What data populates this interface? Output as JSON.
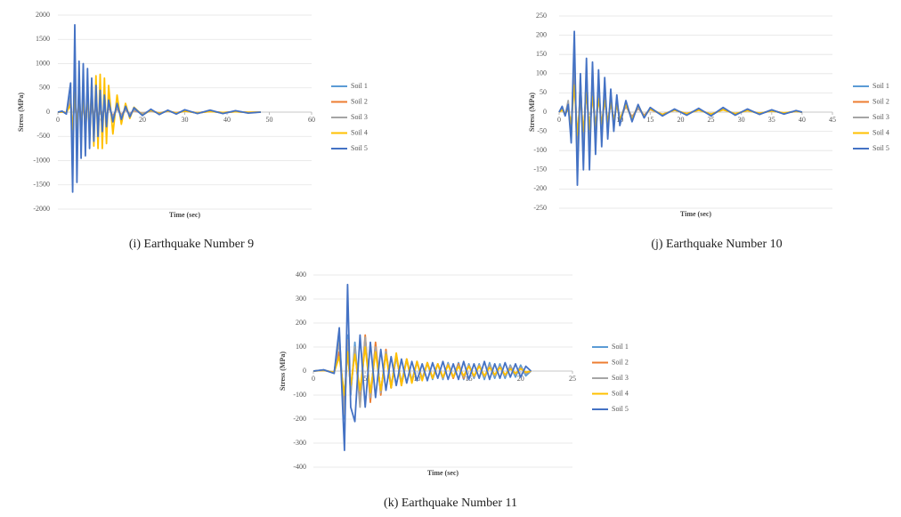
{
  "chart_data": [
    {
      "type": "line",
      "caption": "(i) Earthquake Number 9",
      "xlabel": "Time (sec)",
      "ylabel": "Stress (MPa)",
      "xlim": [
        0,
        60
      ],
      "xticks": [
        0,
        10,
        20,
        30,
        40,
        50,
        60
      ],
      "ylim": [
        -2000,
        2000
      ],
      "yticks": [
        -2000,
        -1500,
        -1000,
        -500,
        0,
        500,
        1000,
        1500,
        2000
      ],
      "grid": true,
      "legend": "right",
      "x": [
        0,
        1,
        2,
        3,
        3.5,
        4,
        4.5,
        5,
        5.5,
        6,
        6.5,
        7,
        7.5,
        8,
        8.5,
        9,
        9.5,
        10,
        10.5,
        11,
        11.5,
        12,
        13,
        14,
        15,
        16,
        17,
        18,
        20,
        22,
        24,
        26,
        28,
        30,
        33,
        36,
        39,
        42,
        45,
        48
      ],
      "series": [
        {
          "name": "Soil 1",
          "color": "#5b9bd5",
          "values": [
            0,
            10,
            -20,
            350,
            -900,
            1000,
            -800,
            600,
            -550,
            550,
            -500,
            500,
            -420,
            400,
            -350,
            320,
            -280,
            260,
            -230,
            200,
            -170,
            150,
            -120,
            100,
            -90,
            70,
            -60,
            50,
            -40,
            35,
            -30,
            25,
            -25,
            30,
            -20,
            25,
            -20,
            15,
            -10,
            0
          ]
        },
        {
          "name": "Soil 2",
          "color": "#ed7d31",
          "values": [
            0,
            5,
            -10,
            200,
            -500,
            550,
            -450,
            400,
            -380,
            380,
            -350,
            330,
            -300,
            280,
            -250,
            220,
            -200,
            180,
            -160,
            140,
            -120,
            100,
            -80,
            70,
            -60,
            50,
            -40,
            35,
            -30,
            25,
            -20,
            20,
            -15,
            20,
            -15,
            15,
            -10,
            10,
            -5,
            0
          ]
        },
        {
          "name": "Soil 3",
          "color": "#a5a5a5",
          "values": [
            0,
            8,
            -15,
            300,
            -700,
            800,
            -650,
            550,
            -500,
            500,
            -450,
            450,
            -400,
            380,
            -320,
            300,
            -260,
            240,
            -210,
            180,
            -150,
            130,
            -110,
            90,
            -80,
            60,
            -50,
            45,
            -35,
            30,
            -25,
            25,
            -20,
            25,
            -20,
            20,
            -15,
            10,
            -5,
            0
          ]
        },
        {
          "name": "Soil 4",
          "color": "#ffc000",
          "values": [
            0,
            5,
            -10,
            150,
            -350,
            400,
            -350,
            300,
            -300,
            350,
            -400,
            500,
            -550,
            650,
            -700,
            750,
            -750,
            780,
            -750,
            700,
            -650,
            550,
            -450,
            350,
            -250,
            180,
            -130,
            100,
            -60,
            40,
            -30,
            25,
            -20,
            20,
            -15,
            15,
            -10,
            10,
            -5,
            0
          ]
        },
        {
          "name": "Soil 5",
          "color": "#4472c4",
          "values": [
            0,
            20,
            -40,
            600,
            -1650,
            1800,
            -1450,
            1050,
            -950,
            1000,
            -900,
            900,
            -750,
            700,
            -600,
            550,
            -500,
            450,
            -400,
            350,
            -300,
            250,
            -200,
            180,
            -150,
            120,
            -100,
            90,
            -70,
            60,
            -50,
            40,
            -40,
            50,
            -30,
            40,
            -30,
            30,
            -20,
            0
          ]
        }
      ]
    },
    {
      "type": "line",
      "caption": "(j) Earthquake Number 10",
      "xlabel": "Time (sec)",
      "ylabel": "Stress (MPa)",
      "xlim": [
        0,
        45
      ],
      "xticks": [
        0,
        5,
        10,
        15,
        20,
        25,
        30,
        35,
        40,
        45
      ],
      "ylim": [
        -250,
        250
      ],
      "yticks": [
        -250,
        -200,
        -150,
        -100,
        -50,
        0,
        50,
        100,
        150,
        200,
        250
      ],
      "grid": true,
      "legend": "right",
      "x": [
        0,
        0.5,
        1,
        1.5,
        2,
        2.5,
        3,
        3.5,
        4,
        4.5,
        5,
        5.5,
        6,
        6.5,
        7,
        7.5,
        8,
        8.5,
        9,
        9.5,
        10,
        11,
        12,
        13,
        14,
        15,
        17,
        19,
        21,
        23,
        25,
        27,
        29,
        31,
        33,
        35,
        37,
        39,
        40
      ],
      "series": [
        {
          "name": "Soil 1",
          "color": "#5b9bd5",
          "values": [
            0,
            10,
            -8,
            15,
            -60,
            140,
            -130,
            80,
            -100,
            100,
            -100,
            90,
            -80,
            75,
            -60,
            60,
            -45,
            40,
            -35,
            30,
            -25,
            20,
            -18,
            15,
            -12,
            10,
            -8,
            6,
            -6,
            8,
            -8,
            9,
            -6,
            6,
            -5,
            5,
            -4,
            3,
            0
          ]
        },
        {
          "name": "Soil 2",
          "color": "#ed7d31",
          "values": [
            0,
            8,
            -5,
            10,
            -40,
            100,
            -90,
            60,
            -70,
            70,
            -70,
            60,
            -55,
            50,
            -40,
            40,
            -30,
            28,
            -24,
            20,
            -18,
            15,
            -12,
            10,
            -8,
            7,
            -6,
            5,
            -4,
            6,
            -6,
            7,
            -5,
            5,
            -4,
            4,
            -3,
            2,
            0
          ]
        },
        {
          "name": "Soil 3",
          "color": "#a5a5a5",
          "values": [
            0,
            12,
            -8,
            30,
            -70,
            150,
            -140,
            90,
            -110,
            110,
            -100,
            90,
            -80,
            70,
            -55,
            50,
            -40,
            35,
            -30,
            25,
            -22,
            18,
            -15,
            12,
            -10,
            8,
            -7,
            6,
            -5,
            7,
            -7,
            8,
            -5,
            5,
            -4,
            4,
            -3,
            2,
            0
          ]
        },
        {
          "name": "Soil 4",
          "color": "#ffc000",
          "values": [
            0,
            5,
            -4,
            8,
            -30,
            70,
            -60,
            40,
            -50,
            50,
            -45,
            40,
            -35,
            35,
            -30,
            30,
            -25,
            25,
            -22,
            20,
            -20,
            22,
            -20,
            18,
            -12,
            8,
            -6,
            5,
            -4,
            5,
            -5,
            6,
            -4,
            4,
            -3,
            3,
            -2,
            2,
            0
          ]
        },
        {
          "name": "Soil 5",
          "color": "#4472c4",
          "values": [
            0,
            15,
            -10,
            20,
            -80,
            210,
            -190,
            100,
            -150,
            140,
            -150,
            130,
            -110,
            110,
            -90,
            90,
            -70,
            60,
            -50,
            45,
            -35,
            30,
            -25,
            20,
            -15,
            12,
            -10,
            8,
            -8,
            10,
            -10,
            12,
            -8,
            8,
            -6,
            6,
            -5,
            4,
            0
          ]
        }
      ]
    },
    {
      "type": "line",
      "caption": "(k) Earthquake Number 11",
      "xlabel": "Time (sec)",
      "ylabel": "Stress (MPa)",
      "xlim": [
        0,
        25
      ],
      "xticks": [
        0,
        5,
        10,
        15,
        20,
        25
      ],
      "ylim": [
        -400,
        400
      ],
      "yticks": [
        -400,
        -300,
        -200,
        -100,
        0,
        100,
        200,
        300,
        400
      ],
      "grid": true,
      "legend": "right",
      "x": [
        0,
        1,
        2,
        2.5,
        3,
        3.3,
        3.6,
        4,
        4.5,
        5,
        5.5,
        6,
        6.5,
        7,
        7.5,
        8,
        8.5,
        9,
        9.5,
        10,
        10.5,
        11,
        11.5,
        12,
        12.5,
        13,
        13.5,
        14,
        14.5,
        15,
        15.5,
        16,
        16.5,
        17,
        17.5,
        18,
        18.5,
        19,
        19.5,
        20,
        20.5,
        21
      ],
      "series": [
        {
          "name": "Soil 1",
          "color": "#5b9bd5",
          "values": [
            0,
            5,
            -8,
            150,
            -200,
            150,
            -100,
            120,
            -140,
            140,
            -120,
            110,
            -90,
            80,
            -70,
            60,
            -50,
            50,
            -40,
            40,
            -35,
            35,
            -35,
            30,
            -35,
            35,
            -30,
            35,
            -35,
            30,
            -30,
            30,
            -35,
            35,
            -30,
            30,
            -30,
            25,
            -25,
            25,
            -20,
            0
          ]
        },
        {
          "name": "Soil 2",
          "color": "#ed7d31",
          "values": [
            0,
            3,
            -5,
            80,
            -120,
            100,
            -80,
            90,
            -130,
            150,
            -130,
            120,
            -100,
            90,
            -70,
            70,
            -60,
            50,
            -45,
            40,
            -35,
            35,
            -30,
            30,
            -30,
            30,
            -30,
            30,
            -30,
            25,
            -25,
            25,
            -25,
            25,
            -20,
            20,
            -20,
            20,
            -15,
            15,
            -10,
            0
          ]
        },
        {
          "name": "Soil 3",
          "color": "#a5a5a5",
          "values": [
            0,
            4,
            -6,
            120,
            -180,
            130,
            -90,
            100,
            -150,
            140,
            -110,
            100,
            -90,
            80,
            -60,
            60,
            -50,
            45,
            -40,
            35,
            -30,
            30,
            -30,
            30,
            -30,
            30,
            -25,
            25,
            -25,
            25,
            -25,
            25,
            -25,
            25,
            -20,
            20,
            -20,
            20,
            -15,
            15,
            -10,
            0
          ]
        },
        {
          "name": "Soil 4",
          "color": "#ffc000",
          "values": [
            0,
            3,
            -5,
            60,
            -100,
            80,
            -60,
            70,
            -80,
            100,
            -90,
            80,
            -80,
            70,
            -70,
            75,
            -60,
            50,
            -50,
            40,
            -40,
            35,
            -30,
            30,
            -25,
            25,
            -25,
            20,
            -20,
            20,
            -20,
            20,
            -20,
            15,
            -15,
            15,
            -15,
            10,
            -10,
            10,
            -5,
            0
          ]
        },
        {
          "name": "Soil 5",
          "color": "#4472c4",
          "values": [
            0,
            5,
            -10,
            180,
            -330,
            360,
            -150,
            -210,
            150,
            -150,
            120,
            -110,
            90,
            -80,
            60,
            -60,
            50,
            -50,
            40,
            -40,
            30,
            -40,
            35,
            -30,
            40,
            -35,
            30,
            -35,
            40,
            -35,
            30,
            -30,
            40,
            -35,
            30,
            -30,
            35,
            -25,
            30,
            -25,
            20,
            0
          ]
        }
      ]
    }
  ]
}
